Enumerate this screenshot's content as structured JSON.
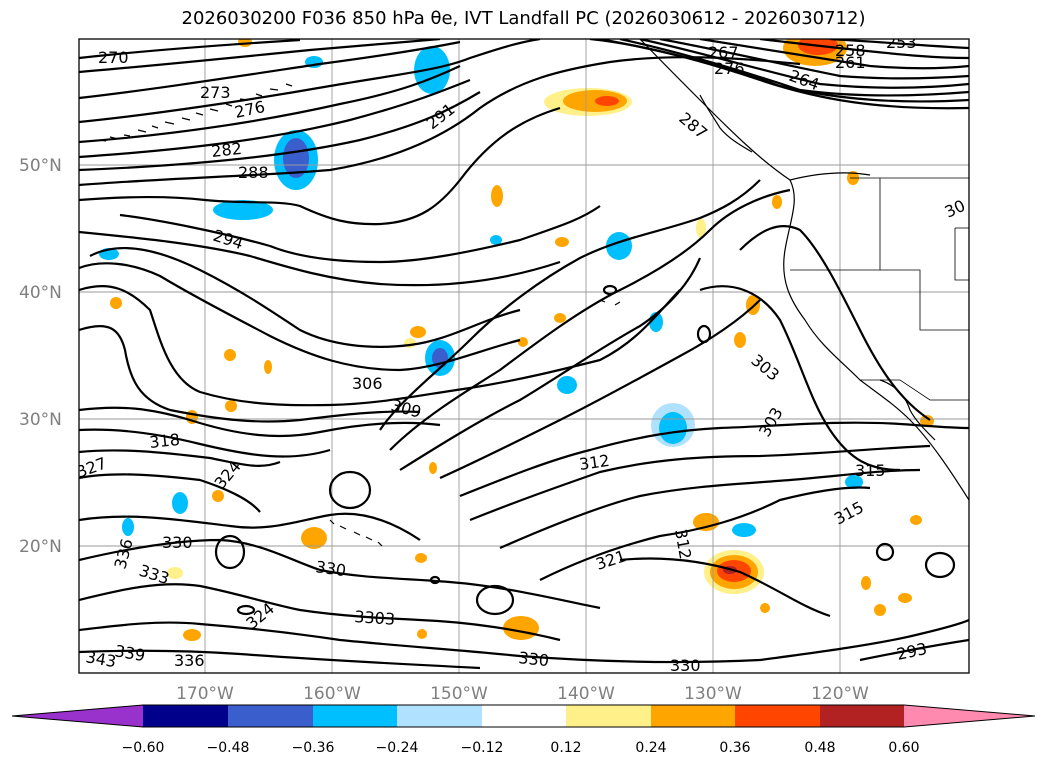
{
  "title": "2026030200 F036 850 hPa θe, IVT Landfall PC (2026030612 - 2026030712)",
  "lat_labels": [
    "50°N",
    "40°N",
    "30°N",
    "20°N"
  ],
  "lon_labels": [
    "170°W",
    "160°W",
    "150°W",
    "140°W",
    "130°W",
    "120°W"
  ],
  "colorbar": {
    "colors": [
      "#9932cc",
      "#00008b",
      "#3a5fcd",
      "#00bfff",
      "#b0e2ff",
      "#ffffff",
      "#fff08a",
      "#ffa500",
      "#ff4500",
      "#b22222",
      "#ff8ab0"
    ],
    "ticks": [
      "−0.60",
      "−0.48",
      "−0.36",
      "−0.24",
      "−0.12",
      "0.12",
      "0.24",
      "0.36",
      "0.48",
      "0.60"
    ]
  },
  "contour_labels": [
    "270",
    "273",
    "276",
    "282",
    "288",
    "291",
    "294",
    "306",
    "309",
    "318",
    "327",
    "324",
    "336",
    "330",
    "333",
    "324",
    "330",
    "3303",
    "339",
    "343",
    "336",
    "330",
    "330",
    "312",
    "321",
    "312",
    "303",
    "303",
    "315",
    "315",
    "267",
    "276",
    "264",
    "258",
    "261",
    "253",
    "287",
    "30",
    "293"
  ]
}
